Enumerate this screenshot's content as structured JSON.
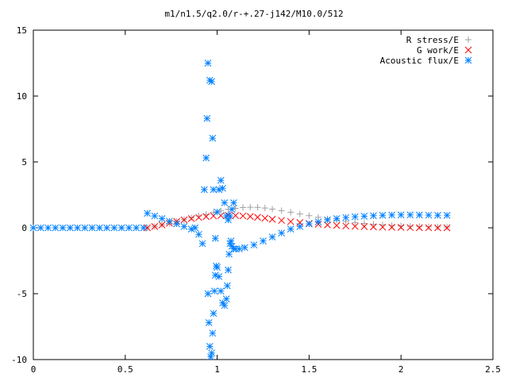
{
  "chart_data": {
    "type": "scatter",
    "title": "m1/n1.5/q2.0/r-+.27-j142/M10.0/512",
    "xlabel": "",
    "ylabel": "",
    "xlim": [
      0,
      2.5
    ],
    "ylim": [
      -10,
      15
    ],
    "x_ticks": [
      "0",
      "0.5",
      "1",
      "1.5",
      "2",
      "2.5"
    ],
    "y_ticks": [
      "-10",
      "-5",
      "0",
      "5",
      "10",
      "15"
    ],
    "x_tick_values": [
      0,
      0.5,
      1,
      1.5,
      2,
      2.5
    ],
    "y_tick_values": [
      -10,
      -5,
      0,
      5,
      10,
      15
    ],
    "grid": false,
    "legend_position": "top-right",
    "series": [
      {
        "name": "R stress/E",
        "marker": "plus",
        "color": "#a0a0a0",
        "x": [
          0.62,
          0.66,
          0.7,
          0.74,
          0.78,
          0.82,
          0.86,
          0.9,
          0.94,
          0.98,
          1.02,
          1.06,
          1.1,
          1.14,
          1.18,
          1.22,
          1.26,
          1.3,
          1.35,
          1.4,
          1.45,
          1.5,
          1.55,
          1.6,
          1.65,
          1.7,
          1.75,
          1.8,
          1.85,
          1.9,
          1.95,
          2.0,
          2.05,
          2.1,
          2.15,
          2.2,
          2.25
        ],
        "y": [
          0.0,
          0.1,
          0.22,
          0.35,
          0.48,
          0.62,
          0.76,
          0.9,
          1.02,
          1.15,
          1.28,
          1.4,
          1.48,
          1.54,
          1.56,
          1.55,
          1.5,
          1.42,
          1.3,
          1.18,
          1.05,
          0.92,
          0.8,
          0.68,
          0.58,
          0.48,
          0.4,
          0.33,
          0.27,
          0.22,
          0.18,
          0.15,
          0.12,
          0.1,
          0.08,
          0.06,
          0.05
        ]
      },
      {
        "name": "G work/E",
        "marker": "cross",
        "color": "#ff0000",
        "x": [
          0.62,
          0.66,
          0.7,
          0.74,
          0.78,
          0.82,
          0.86,
          0.9,
          0.94,
          0.98,
          1.02,
          1.06,
          1.1,
          1.14,
          1.18,
          1.22,
          1.26,
          1.3,
          1.35,
          1.4,
          1.45,
          1.5,
          1.55,
          1.6,
          1.65,
          1.7,
          1.75,
          1.8,
          1.85,
          1.9,
          1.95,
          2.0,
          2.05,
          2.1,
          2.15,
          2.2,
          2.25
        ],
        "y": [
          0.0,
          0.1,
          0.22,
          0.35,
          0.48,
          0.6,
          0.7,
          0.78,
          0.85,
          0.9,
          0.93,
          0.94,
          0.93,
          0.9,
          0.86,
          0.8,
          0.73,
          0.65,
          0.56,
          0.47,
          0.4,
          0.33,
          0.27,
          0.22,
          0.18,
          0.14,
          0.11,
          0.09,
          0.07,
          0.05,
          0.04,
          0.03,
          0.02,
          0.01,
          0.01,
          0.0,
          0.0
        ]
      },
      {
        "name": "Acoustic flux/E",
        "marker": "star",
        "color": "#0080ff",
        "x": [
          0.0,
          0.04,
          0.08,
          0.12,
          0.16,
          0.2,
          0.24,
          0.28,
          0.32,
          0.36,
          0.4,
          0.44,
          0.48,
          0.52,
          0.56,
          0.6,
          0.62,
          0.66,
          0.7,
          0.74,
          0.78,
          0.82,
          0.86,
          0.88,
          0.9,
          0.92,
          0.95,
          0.955,
          0.96,
          0.965,
          0.97,
          0.975,
          0.98,
          0.985,
          0.99,
          0.995,
          1.0,
          1.01,
          1.02,
          1.03,
          1.04,
          1.05,
          1.055,
          1.06,
          1.065,
          1.07,
          1.075,
          1.08,
          1.09,
          1.1,
          1.12,
          1.15,
          1.2,
          1.25,
          1.3,
          1.35,
          1.4,
          1.45,
          1.5,
          1.55,
          1.6,
          1.65,
          1.7,
          1.75,
          1.8,
          1.85,
          1.9,
          1.95,
          2.0,
          2.05,
          2.1,
          2.15,
          2.2,
          2.25,
          0.93,
          0.94,
          0.945,
          0.95,
          0.96,
          0.97,
          0.975,
          0.98,
          0.99,
          1.0,
          1.01,
          1.02,
          1.03,
          1.04,
          1.05,
          1.06,
          1.07,
          1.08,
          1.09
        ],
        "y": [
          0,
          0,
          0,
          0,
          0,
          0,
          0,
          0,
          0,
          0,
          0,
          0,
          0,
          0,
          0,
          0,
          1.1,
          0.9,
          0.7,
          0.5,
          0.3,
          0.1,
          -0.1,
          0.0,
          -0.5,
          -1.2,
          -5.0,
          -7.2,
          -9.0,
          -9.8,
          -9.5,
          -8.0,
          -6.5,
          -4.8,
          -3.6,
          -2.9,
          -3.0,
          -3.7,
          -4.8,
          -5.7,
          -5.9,
          -5.4,
          -4.4,
          -3.2,
          -2.0,
          -1.2,
          -1.0,
          -1.4,
          -1.6,
          -1.6,
          -1.6,
          -1.5,
          -1.3,
          -1.0,
          -0.7,
          -0.4,
          -0.1,
          0.1,
          0.3,
          0.45,
          0.6,
          0.7,
          0.78,
          0.84,
          0.88,
          0.92,
          0.95,
          0.97,
          0.98,
          0.98,
          0.97,
          0.96,
          0.95,
          0.95,
          2.9,
          5.3,
          8.3,
          12.5,
          11.2,
          11.1,
          6.8,
          2.9,
          -0.8,
          1.2,
          2.9,
          3.6,
          3.0,
          1.9,
          0.9,
          0.6,
          0.9,
          1.4,
          1.9
        ]
      }
    ]
  }
}
